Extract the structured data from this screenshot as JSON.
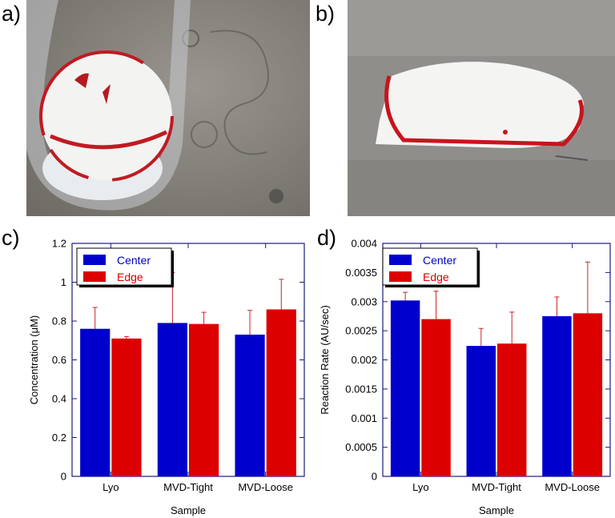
{
  "panels": {
    "a": {
      "label": "a)"
    },
    "b": {
      "label": "b)"
    },
    "c": {
      "label": "c)"
    },
    "d": {
      "label": "d)"
    }
  },
  "colors": {
    "center": "#0000cc",
    "edge": "#dd0000",
    "axes": "#1a1a80",
    "error": "#cc2222"
  },
  "chart_data": [
    {
      "type": "bar",
      "panel": "c",
      "categories": [
        "Lyo",
        "MVD-Tight",
        "MVD-Loose"
      ],
      "series": [
        {
          "name": "Center",
          "values": [
            0.76,
            0.79,
            0.73
          ],
          "errors": [
            0.11,
            0.26,
            0.125
          ]
        },
        {
          "name": "Edge",
          "values": [
            0.71,
            0.785,
            0.86
          ],
          "errors": [
            0.01,
            0.06,
            0.155
          ]
        }
      ],
      "xlabel": "Sample",
      "ylabel": "Concentration (μM)",
      "ylim": [
        0,
        1.2
      ],
      "yticks": [
        "0",
        "0.2",
        "0.4",
        "0.6",
        "0.8",
        "1",
        "1.2"
      ],
      "legend": "top-left",
      "grid": false
    },
    {
      "type": "bar",
      "panel": "d",
      "categories": [
        "Lyo",
        "MVD-Tight",
        "MVD-Loose"
      ],
      "series": [
        {
          "name": "Center",
          "values": [
            0.00302,
            0.00224,
            0.00275
          ],
          "errors": [
            0.00014,
            0.0003,
            0.00033
          ]
        },
        {
          "name": "Edge",
          "values": [
            0.0027,
            0.00228,
            0.0028
          ],
          "errors": [
            0.00048,
            0.00054,
            0.00088
          ]
        }
      ],
      "xlabel": "Sample",
      "ylabel": "Reaction Rate (AU/sec)",
      "ylim": [
        0,
        0.004
      ],
      "yticks": [
        "0",
        "0.0005",
        "0.001",
        "0.0015",
        "0.002",
        "0.0025",
        "0.003",
        "0.0035",
        "0.004"
      ],
      "legend": "top-left",
      "grid": false
    }
  ]
}
